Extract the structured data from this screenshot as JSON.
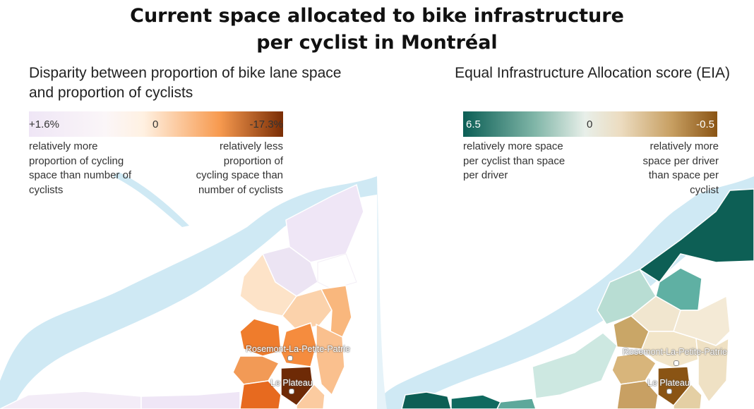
{
  "title": {
    "line1": "Current space allocated to bike infrastructure",
    "line2": "per cyclist in Montréal"
  },
  "left_panel": {
    "subtitle": "Disparity between proportion of bike lane space and proportion of cyclists",
    "legend": {
      "min_label": "+1.6%",
      "mid_label": "0",
      "max_label": "-17.3%",
      "colors": [
        "#efe6f6",
        "#fff1e2",
        "#f79a4f",
        "#7a2d05"
      ],
      "left_text": "relatively more proportion of cycling space than number of cyclists",
      "right_text": "relatively less proportion of cycling space than number of cyclists"
    },
    "labels": {
      "rosemont": "Rosemont-La-Petite-Patrie",
      "plateau": "Le Plateau"
    }
  },
  "right_panel": {
    "subtitle": "Equal Infrastructure Allocation score (EIA)",
    "legend": {
      "min_label": "6.5",
      "mid_label": "0",
      "max_label": "-0.5",
      "colors": [
        "#0b5e55",
        "#e8efe9",
        "#c79f62",
        "#8a5414"
      ],
      "left_text": "relatively more space per cyclist than space per driver",
      "right_text": "relatively more space per driver than space per cyclist"
    },
    "labels": {
      "rosemont": "Rosemont-La-Petite-Patrie",
      "plateau": "Le Plateau"
    }
  },
  "colors": {
    "water": "#cfe9f4",
    "border": "#ffffff"
  }
}
